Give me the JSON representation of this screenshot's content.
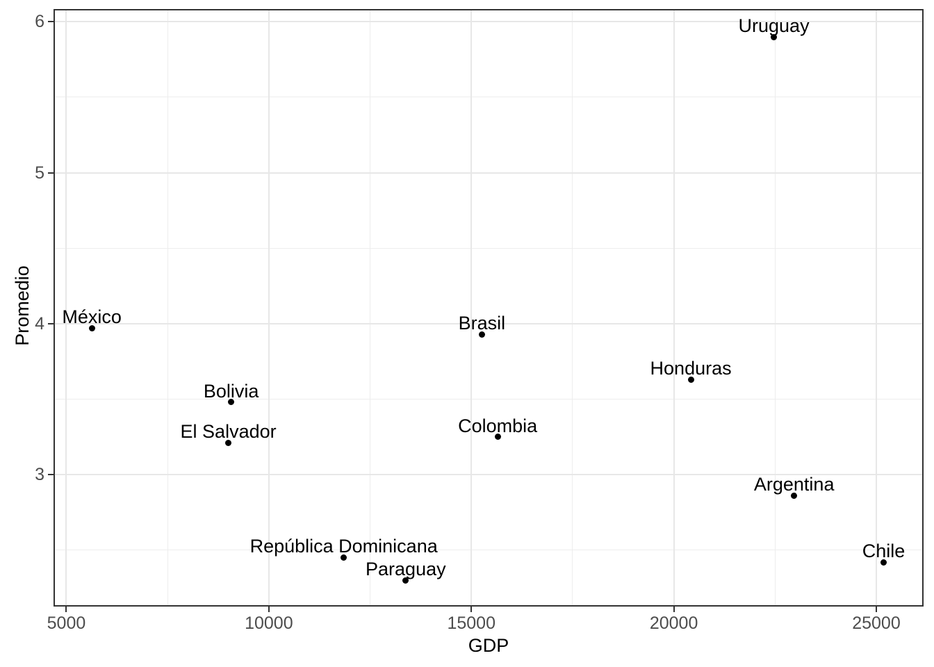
{
  "chart_data": {
    "type": "scatter",
    "title": "",
    "xlabel": "GDP",
    "ylabel": "Promedio",
    "xlim": [
      4700,
      26150
    ],
    "ylim": [
      2.13,
      6.08
    ],
    "x_ticks": [
      5000,
      10000,
      15000,
      20000,
      25000
    ],
    "x_tick_labels": [
      "5000",
      "10000",
      "15000",
      "20000",
      "25000"
    ],
    "y_ticks": [
      3,
      4,
      5,
      6
    ],
    "y_tick_labels": [
      "3",
      "4",
      "5",
      "6"
    ],
    "x_minor_gridlines": [
      7500,
      12500,
      17500,
      22500
    ],
    "y_minor_gridlines": [
      2.5,
      3.5,
      4.5,
      5.5
    ],
    "grid": true,
    "legend": false,
    "points": [
      {
        "label": "México",
        "x": 5630,
        "y": 3.97
      },
      {
        "label": "Bolivia",
        "x": 9070,
        "y": 3.48
      },
      {
        "label": "El Salvador",
        "x": 9000,
        "y": 3.21
      },
      {
        "label": "República Dominicana",
        "x": 11850,
        "y": 2.45
      },
      {
        "label": "Paraguay",
        "x": 13380,
        "y": 2.3
      },
      {
        "label": "Brasil",
        "x": 15260,
        "y": 3.93
      },
      {
        "label": "Colombia",
        "x": 15650,
        "y": 3.25
      },
      {
        "label": "Honduras",
        "x": 20420,
        "y": 3.63
      },
      {
        "label": "Uruguay",
        "x": 22470,
        "y": 5.9
      },
      {
        "label": "Argentina",
        "x": 22970,
        "y": 2.86
      },
      {
        "label": "Chile",
        "x": 25180,
        "y": 2.42
      }
    ],
    "colors": {
      "point": "#000000",
      "label_text": "#000000",
      "tick_text": "#4d4d4d",
      "axis_title": "#000000",
      "panel_border": "#333333",
      "grid_major": "#e7e7e7",
      "grid_minor": "#ededed",
      "background": "#ffffff"
    }
  }
}
